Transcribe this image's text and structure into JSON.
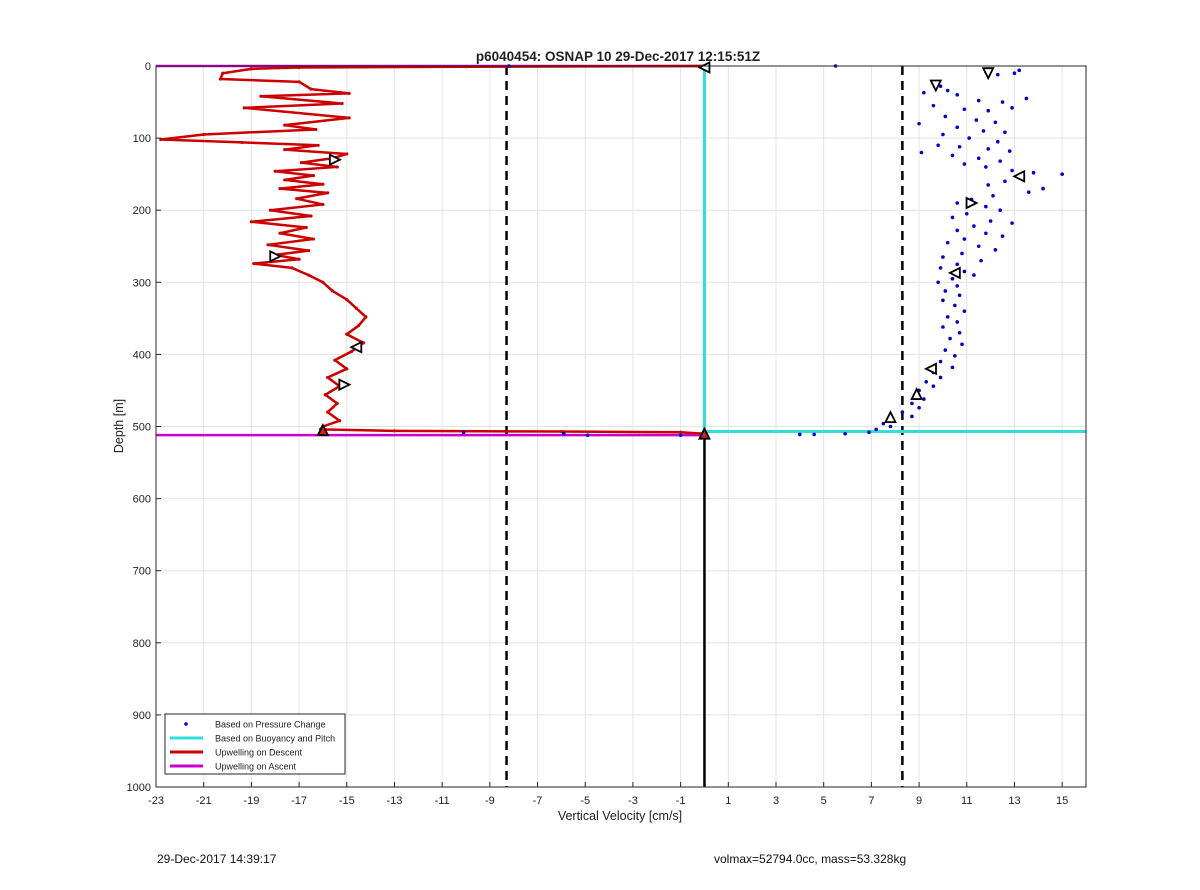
{
  "chart_data": {
    "type": "scatter",
    "title": "p6040454: OSNAP 10 29-Dec-2017 12:15:51Z",
    "xlabel": "Vertical Velocity [cm/s]",
    "ylabel": "Depth [m]",
    "xlim": [
      -23,
      16
    ],
    "ylim": [
      0,
      1000
    ],
    "y_reversed": true,
    "grid": true,
    "xticks": [
      -23,
      -21,
      -19,
      -17,
      -15,
      -13,
      -11,
      -9,
      -7,
      -5,
      -3,
      -1,
      1,
      3,
      5,
      7,
      9,
      11,
      13,
      15
    ],
    "yticks": [
      0,
      100,
      200,
      300,
      400,
      500,
      600,
      700,
      800,
      900,
      1000
    ],
    "legend_position": "bottom-left",
    "legend": [
      {
        "label": "Based on Pressure Change",
        "color": "#0000cc",
        "style": "point"
      },
      {
        "label": "Based on Buoyancy and Pitch",
        "color": "#33dddd",
        "style": "line"
      },
      {
        "label": "Upwelling on Descent",
        "color": "#cc0000",
        "style": "line"
      },
      {
        "label": "Upwelling on Ascent",
        "color": "#cc00cc",
        "style": "line"
      }
    ],
    "reference_lines": {
      "dashed_x": [
        -8.3,
        8.3
      ],
      "solid_x": 0
    },
    "series": [
      {
        "name": "Based on Pressure Change",
        "color": "#0000cc",
        "points": [
          [
            5.5,
            0
          ],
          [
            11.8,
            8
          ],
          [
            12.3,
            12
          ],
          [
            13.2,
            6
          ],
          [
            13.0,
            10
          ],
          [
            9.6,
            22
          ],
          [
            9.9,
            28
          ],
          [
            9.2,
            37
          ],
          [
            10.2,
            34
          ],
          [
            13.5,
            45
          ],
          [
            10.6,
            40
          ],
          [
            11.5,
            48
          ],
          [
            12.5,
            50
          ],
          [
            9.6,
            55
          ],
          [
            10.9,
            60
          ],
          [
            11.9,
            62
          ],
          [
            12.9,
            58
          ],
          [
            10.1,
            70
          ],
          [
            11.4,
            75
          ],
          [
            12.2,
            78
          ],
          [
            9.0,
            80
          ],
          [
            10.6,
            85
          ],
          [
            11.7,
            90
          ],
          [
            12.6,
            92
          ],
          [
            10.0,
            95
          ],
          [
            11.1,
            100
          ],
          [
            12.3,
            105
          ],
          [
            9.8,
            110
          ],
          [
            10.7,
            112
          ],
          [
            11.9,
            115
          ],
          [
            12.8,
            118
          ],
          [
            9.1,
            120
          ],
          [
            10.4,
            124
          ],
          [
            11.5,
            128
          ],
          [
            12.4,
            132
          ],
          [
            10.9,
            136
          ],
          [
            11.8,
            140
          ],
          [
            12.9,
            145
          ],
          [
            13.8,
            148
          ],
          [
            15.0,
            150
          ],
          [
            13.2,
            155
          ],
          [
            12.6,
            160
          ],
          [
            11.9,
            165
          ],
          [
            14.2,
            170
          ],
          [
            13.6,
            175
          ],
          [
            12.1,
            180
          ],
          [
            11.2,
            185
          ],
          [
            10.6,
            190
          ],
          [
            11.8,
            195
          ],
          [
            12.4,
            200
          ],
          [
            11.0,
            205
          ],
          [
            10.4,
            210
          ],
          [
            12.0,
            215
          ],
          [
            12.9,
            218
          ],
          [
            11.3,
            222
          ],
          [
            10.6,
            228
          ],
          [
            11.8,
            232
          ],
          [
            12.5,
            236
          ],
          [
            10.9,
            240
          ],
          [
            10.2,
            245
          ],
          [
            11.5,
            250
          ],
          [
            12.2,
            255
          ],
          [
            10.8,
            260
          ],
          [
            10.0,
            265
          ],
          [
            11.6,
            270
          ],
          [
            10.6,
            275
          ],
          [
            9.9,
            280
          ],
          [
            10.9,
            285
          ],
          [
            11.3,
            290
          ],
          [
            10.4,
            295
          ],
          [
            9.8,
            300
          ],
          [
            10.6,
            305
          ],
          [
            10.1,
            312
          ],
          [
            10.7,
            318
          ],
          [
            10.0,
            325
          ],
          [
            10.5,
            332
          ],
          [
            10.9,
            340
          ],
          [
            10.2,
            348
          ],
          [
            10.6,
            355
          ],
          [
            10.0,
            362
          ],
          [
            10.7,
            370
          ],
          [
            10.3,
            378
          ],
          [
            10.8,
            386
          ],
          [
            10.1,
            394
          ],
          [
            10.5,
            402
          ],
          [
            9.9,
            410
          ],
          [
            10.4,
            418
          ],
          [
            9.6,
            425
          ],
          [
            9.9,
            432
          ],
          [
            9.3,
            438
          ],
          [
            9.6,
            444
          ],
          [
            9.0,
            450
          ],
          [
            8.9,
            456
          ],
          [
            9.2,
            462
          ],
          [
            8.7,
            468
          ],
          [
            9.0,
            474
          ],
          [
            8.3,
            480
          ],
          [
            8.7,
            486
          ],
          [
            7.9,
            490
          ],
          [
            7.5,
            496
          ],
          [
            7.8,
            500
          ],
          [
            7.2,
            504
          ],
          [
            6.9,
            508
          ],
          [
            5.9,
            510
          ],
          [
            4.6,
            511
          ],
          [
            4.0,
            511
          ],
          [
            -1.0,
            512
          ],
          [
            -4.9,
            512
          ],
          [
            -5.9,
            510
          ],
          [
            -10.1,
            508
          ],
          [
            -8.2,
            0
          ]
        ]
      },
      {
        "name": "Based on Buoyancy and Pitch",
        "color": "#33dddd",
        "points": [
          [
            0,
            0
          ],
          [
            0,
            507
          ],
          [
            16,
            507
          ]
        ]
      },
      {
        "name": "Upwelling on Descent",
        "color": "#cc0000",
        "points": [
          [
            0,
            0
          ],
          [
            -10,
            1
          ],
          [
            -17,
            2
          ],
          [
            -19,
            4
          ],
          [
            -20.2,
            10
          ],
          [
            -20.3,
            18
          ],
          [
            -17,
            22
          ],
          [
            -16.5,
            32
          ],
          [
            -14.9,
            38
          ],
          [
            -18.6,
            42
          ],
          [
            -15.2,
            52
          ],
          [
            -19.3,
            58
          ],
          [
            -14.9,
            72
          ],
          [
            -17.6,
            82
          ],
          [
            -16.3,
            88
          ],
          [
            -21,
            95
          ],
          [
            -22.8,
            102
          ],
          [
            -19.4,
            106
          ],
          [
            -16.2,
            110
          ],
          [
            -17.6,
            116
          ],
          [
            -15.0,
            122
          ],
          [
            -15.6,
            128
          ],
          [
            -16.9,
            134
          ],
          [
            -15.4,
            140
          ],
          [
            -18.0,
            146
          ],
          [
            -16.4,
            152
          ],
          [
            -17.6,
            158
          ],
          [
            -16.0,
            164
          ],
          [
            -17.8,
            170
          ],
          [
            -15.8,
            176
          ],
          [
            -17.1,
            184
          ],
          [
            -16.0,
            192
          ],
          [
            -18.2,
            200
          ],
          [
            -16.5,
            208
          ],
          [
            -19.0,
            216
          ],
          [
            -16.7,
            224
          ],
          [
            -17.8,
            232
          ],
          [
            -16.4,
            240
          ],
          [
            -18.3,
            248
          ],
          [
            -16.6,
            256
          ],
          [
            -18.0,
            262
          ],
          [
            -17.0,
            268
          ],
          [
            -18.9,
            274
          ],
          [
            -17.3,
            280
          ],
          [
            -16.6,
            290
          ],
          [
            -16.0,
            300
          ],
          [
            -15.6,
            312
          ],
          [
            -15.0,
            324
          ],
          [
            -14.6,
            336
          ],
          [
            -14.2,
            348
          ],
          [
            -14.5,
            360
          ],
          [
            -15.0,
            372
          ],
          [
            -14.3,
            384
          ],
          [
            -14.8,
            396
          ],
          [
            -15.5,
            408
          ],
          [
            -15.0,
            420
          ],
          [
            -15.8,
            432
          ],
          [
            -15.3,
            444
          ],
          [
            -15.9,
            456
          ],
          [
            -15.4,
            468
          ],
          [
            -15.8,
            480
          ],
          [
            -15.3,
            492
          ],
          [
            -16.0,
            500
          ],
          [
            -16.1,
            504
          ],
          [
            -13.0,
            506
          ],
          [
            -6.0,
            507
          ],
          [
            -1.0,
            508
          ],
          [
            0,
            510
          ]
        ]
      },
      {
        "name": "Upwelling on Ascent",
        "color": "#cc00cc",
        "points": [
          [
            -23,
            0
          ],
          [
            0,
            0
          ],
          [
            -23,
            512
          ],
          [
            0,
            512
          ]
        ],
        "segments": [
          [
            [
              -23,
              0
            ],
            [
              0,
              0
            ]
          ],
          [
            [
              -23,
              512
            ],
            [
              0,
              512
            ]
          ]
        ]
      }
    ],
    "markers": [
      {
        "x": 0,
        "y": 2,
        "dir": "left",
        "filled": false
      },
      {
        "x": -15.5,
        "y": 130,
        "dir": "right",
        "filled": false
      },
      {
        "x": -18.0,
        "y": 264,
        "dir": "right",
        "filled": false
      },
      {
        "x": -14.6,
        "y": 390,
        "dir": "left",
        "filled": false
      },
      {
        "x": -15.1,
        "y": 442,
        "dir": "right",
        "filled": false
      },
      {
        "x": -16.0,
        "y": 505,
        "dir": "up",
        "filled": true
      },
      {
        "x": 0,
        "y": 510,
        "dir": "up",
        "filled": true
      },
      {
        "x": 9.7,
        "y": 27,
        "dir": "down",
        "filled": false
      },
      {
        "x": 11.9,
        "y": 10,
        "dir": "down",
        "filled": false
      },
      {
        "x": 13.2,
        "y": 153,
        "dir": "left",
        "filled": false
      },
      {
        "x": 11.2,
        "y": 190,
        "dir": "right",
        "filled": false
      },
      {
        "x": 10.5,
        "y": 287,
        "dir": "left",
        "filled": false
      },
      {
        "x": 9.5,
        "y": 420,
        "dir": "left",
        "filled": false
      },
      {
        "x": 8.9,
        "y": 455,
        "dir": "up",
        "filled": false
      },
      {
        "x": 7.8,
        "y": 487,
        "dir": "up",
        "filled": false
      }
    ]
  },
  "footer": {
    "left": "29-Dec-2017 14:39:17",
    "right": "volmax=52794.0cc, mass=53.328kg"
  }
}
